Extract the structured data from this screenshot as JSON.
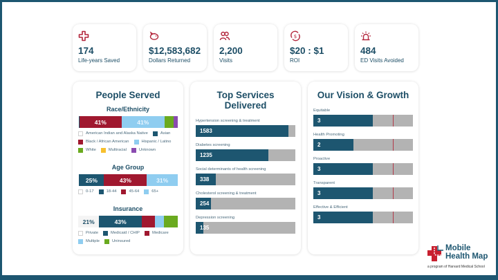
{
  "colors": {
    "frame": "#1d5670",
    "navy": "#1d5670",
    "crimson": "#a0182f",
    "light_blue": "#8fcdf0",
    "green": "#6aaa1f",
    "yellow": "#f7c02e",
    "purple": "#8a4bb0",
    "gray": "#b3b3b3",
    "icon_red": "#b3263c"
  },
  "kpis": [
    {
      "icon": "medical-cross-icon",
      "value": "174",
      "label": "Life-years Saved"
    },
    {
      "icon": "piggy-bank-icon",
      "value": "$12,583,682",
      "label": "Dollars Returned"
    },
    {
      "icon": "people-icon",
      "value": "2,200",
      "label": "Visits"
    },
    {
      "icon": "dollar-cycle-icon",
      "value": "$20 : $1",
      "label": "ROI"
    },
    {
      "icon": "siren-icon",
      "value": "484",
      "label": "ED Visits Avoided"
    }
  ],
  "people_served": {
    "title": "People Served",
    "race": {
      "title": "Race/Ethnicity",
      "segments": [
        {
          "name": "American Indian and Alaska Native",
          "value": 0.5,
          "color": "#ffffff",
          "label": ""
        },
        {
          "name": "Asian",
          "value": 0.5,
          "color": "#1d5670",
          "label": ""
        },
        {
          "name": "Black / African American",
          "value": 41,
          "color": "#a0182f",
          "label": "41%"
        },
        {
          "name": "Hispanic / Latino",
          "value": 41,
          "color": "#8fcdf0",
          "label": "41%"
        },
        {
          "name": "White",
          "value": 9,
          "color": "#6aaa1f",
          "label": ""
        },
        {
          "name": "Multiracial",
          "value": 0,
          "color": "#f7c02e",
          "label": ""
        },
        {
          "name": "Unknown",
          "value": 4,
          "color": "#8a4bb0",
          "label": ""
        }
      ]
    },
    "age": {
      "title": "Age Group",
      "segments": [
        {
          "name": "0-17",
          "value": 1,
          "color": "#ffffff",
          "label": ""
        },
        {
          "name": "18-44",
          "value": 25,
          "color": "#1d5670",
          "label": "25%"
        },
        {
          "name": "45-64",
          "value": 43,
          "color": "#a0182f",
          "label": "43%"
        },
        {
          "name": "65+",
          "value": 31,
          "color": "#8fcdf0",
          "label": "31%"
        }
      ]
    },
    "insurance": {
      "title": "Insurance",
      "segments": [
        {
          "name": "Private",
          "value": 21,
          "color": "#f4f4f4",
          "label": "21%"
        },
        {
          "name": "Medicaid / CHIP",
          "value": 43,
          "color": "#1d5670",
          "label": "43%"
        },
        {
          "name": "Medicare",
          "value": 13,
          "color": "#a0182f",
          "label": ""
        },
        {
          "name": "Multiple",
          "value": 9,
          "color": "#8fcdf0",
          "label": ""
        },
        {
          "name": "Uninsured",
          "value": 14,
          "color": "#6aaa1f",
          "label": ""
        }
      ]
    }
  },
  "services": {
    "title": "Top Services Delivered",
    "max": 1700,
    "items": [
      {
        "label": "Hypertension screening & treatment",
        "value": 1583
      },
      {
        "label": "Diabetes screening",
        "value": 1235
      },
      {
        "label": "Social determinants of health screening",
        "value": 338
      },
      {
        "label": "Cholesterol screening & treatment",
        "value": 254
      },
      {
        "label": "Depression screening",
        "value": 135
      }
    ]
  },
  "vision": {
    "title": "Our Vision & Growth",
    "max": 5,
    "target": 4,
    "items": [
      {
        "label": "Equitable",
        "value": 3
      },
      {
        "label": "Health Promoting",
        "value": 2
      },
      {
        "label": "Proactive",
        "value": 3
      },
      {
        "label": "Transparent",
        "value": 3
      },
      {
        "label": "Effective & Efficient",
        "value": 3
      }
    ]
  },
  "logo": {
    "line1": "Mobile",
    "line2": "Health Map",
    "tagline": "a program of Harvard Medical School"
  },
  "chart_data": [
    {
      "type": "bar",
      "title": "Race/Ethnicity",
      "orientation": "stacked-horizontal",
      "categories": [
        "American Indian and Alaska Native",
        "Asian",
        "Black / African American",
        "Hispanic / Latino",
        "White",
        "Multiracial",
        "Unknown"
      ],
      "values": [
        0.5,
        0.5,
        41,
        41,
        9,
        0,
        4
      ],
      "unit": "%"
    },
    {
      "type": "bar",
      "title": "Age Group",
      "orientation": "stacked-horizontal",
      "categories": [
        "0-17",
        "18-44",
        "45-64",
        "65+"
      ],
      "values": [
        1,
        25,
        43,
        31
      ],
      "unit": "%"
    },
    {
      "type": "bar",
      "title": "Insurance",
      "orientation": "stacked-horizontal",
      "categories": [
        "Private",
        "Medicaid / CHIP",
        "Medicare",
        "Multiple",
        "Uninsured"
      ],
      "values": [
        21,
        43,
        13,
        9,
        14
      ],
      "unit": "%"
    },
    {
      "type": "bar",
      "title": "Top Services Delivered",
      "orientation": "horizontal",
      "categories": [
        "Hypertension screening & treatment",
        "Diabetes screening",
        "Social determinants of health screening",
        "Cholesterol screening & treatment",
        "Depression screening"
      ],
      "values": [
        1583,
        1235,
        338,
        254,
        135
      ],
      "xlim": [
        0,
        1700
      ]
    },
    {
      "type": "bar",
      "title": "Our Vision & Growth",
      "orientation": "horizontal",
      "categories": [
        "Equitable",
        "Health Promoting",
        "Proactive",
        "Transparent",
        "Effective & Efficient"
      ],
      "values": [
        3,
        2,
        3,
        3,
        3
      ],
      "xlim": [
        0,
        5
      ],
      "target": 4
    }
  ]
}
